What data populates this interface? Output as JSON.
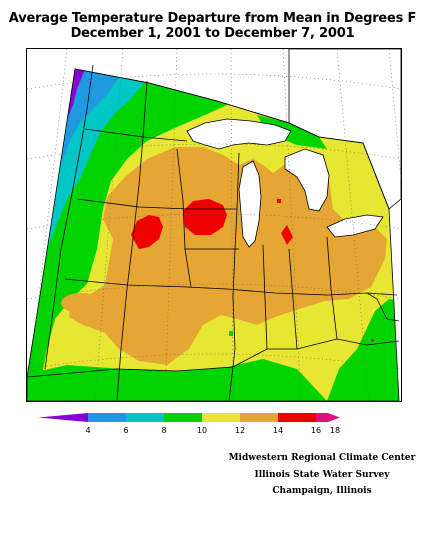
{
  "title": {
    "line1": "Average Temperature Departure from Mean in Degrees F",
    "line2": "December 1, 2001  to December 7, 2001"
  },
  "legend": {
    "colors": [
      "#8a00d4",
      "#1e9be0",
      "#00c6c6",
      "#00d400",
      "#e6e633",
      "#e6a633",
      "#ef0000",
      "#e0117f"
    ],
    "labels": [
      "4",
      "6",
      "8",
      "10",
      "12",
      "14",
      "16",
      "18"
    ]
  },
  "credits": {
    "line1": "Midwestern Regional Climate Center",
    "line2": "Illinois State Water Survey",
    "line3": "Champaign, Illinois"
  }
}
